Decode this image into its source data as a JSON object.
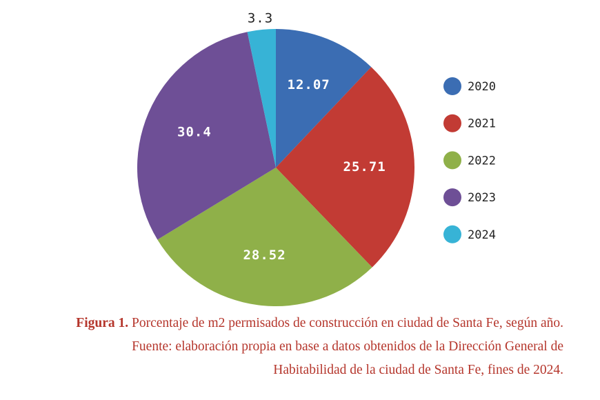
{
  "chart_data": {
    "type": "pie",
    "categories": [
      "2020",
      "2021",
      "2022",
      "2023",
      "2024"
    ],
    "values": [
      12.07,
      25.71,
      28.52,
      30.4,
      3.3
    ],
    "colors": [
      "#3b6db3",
      "#c23b34",
      "#8fb049",
      "#6e4f96",
      "#37b3d6"
    ],
    "legend": "right",
    "caption_label": "Figura 1.",
    "caption": "Porcentaje de m2 permisados de construcción en ciudad de Santa Fe, según año. Fuente: elaboración propia en base a datos obtenidos de la Dirección General de Habitabilidad de la ciudad de Santa Fe, fines de 2024."
  }
}
